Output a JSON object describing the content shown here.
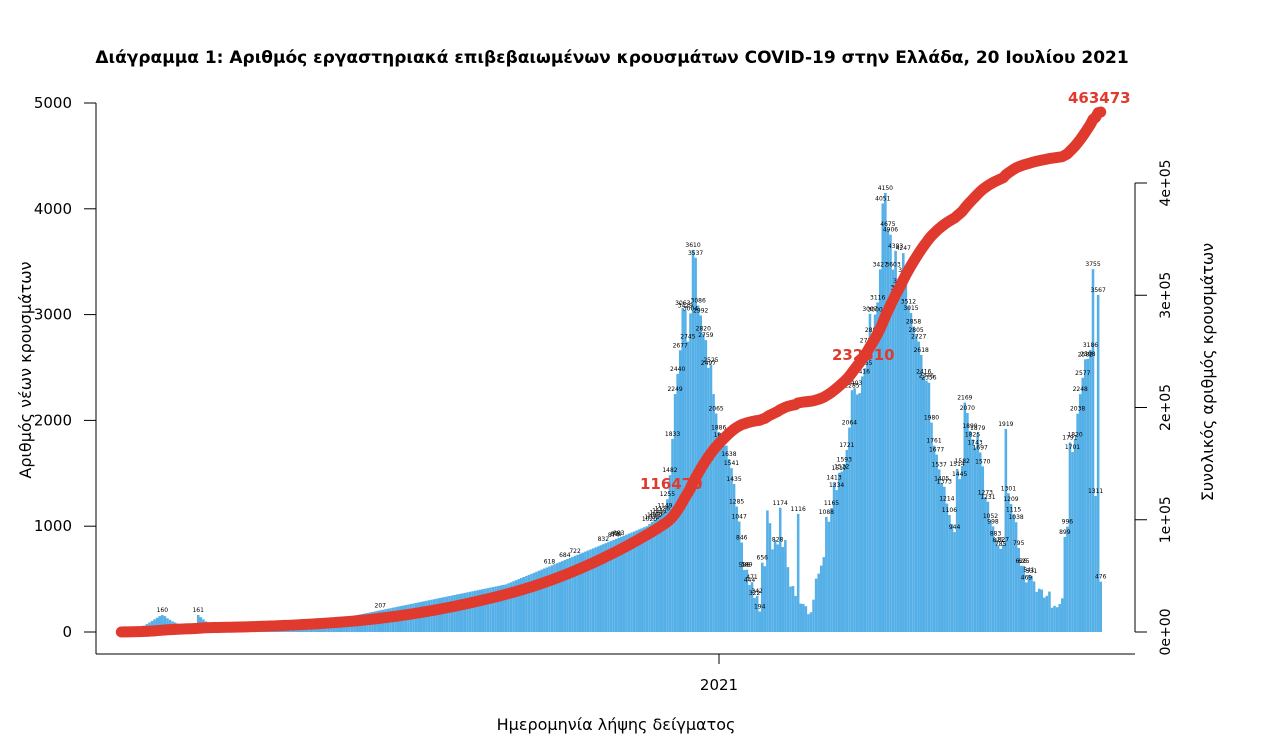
{
  "chart_data": {
    "type": "bar",
    "title": "Διάγραμμα 1: Αριθμός εργαστηριακά επιβεβαιωμένων κρουσμάτων COVID-19 στην Ελλάδα, 20 Ιουλίου 2021",
    "xlabel": "Ημερομηνία λήψης δείγματος",
    "ylabel": "Αριθμός νέων κρουσμάτων",
    "y2label": "Συνολικός αριθμός κρουσμάτων",
    "ylim": [
      0,
      5000
    ],
    "y2lim": [
      0,
      463473
    ],
    "y_ticks": [
      "0",
      "1000",
      "2000",
      "3000",
      "4000",
      "5000"
    ],
    "y2_ticks": [
      "0e+00",
      "1e+05",
      "2e+05",
      "3e+05",
      "4e+05"
    ],
    "x_ticks": [
      "2021"
    ],
    "grid": false,
    "bar_color": "#56b0e8",
    "cumulative_color": "#e03a2e",
    "series": [
      {
        "name": "new_cases",
        "values": [
          20,
          30,
          25,
          35,
          40,
          45,
          49,
          30,
          50,
          60,
          75,
          90,
          105,
          120,
          135,
          150,
          160,
          150,
          130,
          115,
          100,
          90,
          80,
          70,
          61,
          72,
          70,
          65,
          60,
          55,
          161,
          140,
          120,
          100,
          60,
          45,
          40,
          38,
          35,
          32,
          30,
          28,
          30,
          35,
          38,
          40,
          42,
          45,
          48,
          50,
          55,
          58,
          60,
          62,
          65,
          60,
          58,
          55,
          60,
          62,
          65,
          68,
          70,
          72,
          75,
          78,
          80,
          82,
          85,
          88,
          90,
          92,
          95,
          98,
          100,
          102,
          105,
          108,
          110,
          112,
          115,
          118,
          120,
          122,
          125,
          128,
          130,
          135,
          140,
          145,
          150,
          155,
          160,
          165,
          170,
          175,
          180,
          185,
          190,
          195,
          200,
          205,
          210,
          215,
          220,
          225,
          230,
          235,
          240,
          245,
          250,
          255,
          260,
          265,
          270,
          275,
          280,
          285,
          290,
          295,
          300,
          305,
          310,
          315,
          320,
          325,
          330,
          335,
          340,
          345,
          350,
          355,
          360,
          365,
          370,
          375,
          380,
          385,
          390,
          395,
          400,
          405,
          410,
          415,
          420,
          425,
          430,
          435,
          440,
          445,
          450,
          460,
          470,
          480,
          490,
          500,
          510,
          520,
          530,
          540,
          550,
          560,
          570,
          580,
          590,
          600,
          610,
          620,
          630,
          640,
          650,
          660,
          670,
          680,
          690,
          700,
          710,
          720,
          730,
          740,
          750,
          760,
          770,
          780,
          790,
          800,
          810,
          820,
          830,
          840,
          850,
          860,
          870,
          880,
          890,
          900,
          910,
          920,
          930,
          940,
          950,
          960,
          970,
          980,
          990,
          1000,
          1020,
          1040,
          1060,
          1080,
          1100,
          1120,
          1149,
          1255,
          1482,
          1825,
          2249,
          2440,
          2663,
          3063,
          3040,
          2745,
          3011,
          3610,
          3537,
          3086,
          2992,
          2820,
          2759,
          2497,
          2525,
          2249,
          2065,
          1886,
          1817,
          1759,
          1762,
          1635,
          1549,
          1399,
          1186,
          1044,
          846,
          586,
          589,
          444,
          471,
          322,
          342,
          194,
          656,
          622,
          1149,
          1029,
          781,
          867,
          828,
          1174,
          804,
          869,
          613,
          430,
          434,
          341,
          1116,
          268,
          265,
          244,
          169,
          187,
          306,
          505,
          552,
          628,
          708,
          1088,
          1042,
          1172,
          1413,
          1341,
          1505,
          1517,
          1582,
          1721,
          1932,
          2285,
          2304,
          2245,
          2258,
          2416,
          2493,
          2710,
          3007,
          2809,
          3000,
          3116,
          3427,
          4051,
          4150,
          3807,
          3755,
          3425,
          3603,
          3209,
          3272,
          3581,
          3376,
          3076,
          3015,
          2887,
          2805,
          2745,
          2618,
          2416,
          2376,
          2356,
          1980,
          1761,
          1677,
          1537,
          1405,
          1373,
          1214,
          1106,
          1020,
          944,
          1541,
          1445,
          1570,
          2169,
          2070,
          1899,
          1820,
          1743,
          1879,
          1697,
          1566,
          1273,
          1231,
          1047,
          998,
          883,
          821,
          785,
          827,
          1919,
          1311,
          1209,
          1111,
          1038,
          795,
          626,
          625,
          469,
          541,
          531,
          478,
          380,
          409,
          401,
          325,
          342,
          382,
          229,
          247,
          234,
          264,
          318,
          899,
          996,
          1791,
          1701,
          1820,
          2064,
          2248,
          2403,
          2577,
          2582,
          2666,
          3429,
          1285,
          3186,
          476
        ]
      },
      {
        "name": "cumulative",
        "labels": [
          "116470",
          "232510",
          "463473"
        ],
        "values": [
          116470,
          232510,
          463473
        ]
      }
    ],
    "bar_labels": [
      "160",
      "161",
      "3610",
      "3537",
      "3063",
      "3086",
      "2992",
      "2820",
      "2759",
      "2440",
      "2525",
      "2497",
      "2455",
      "2249",
      "2065",
      "1886",
      "1833",
      "1825",
      "1593",
      "1522",
      "1482",
      "1255",
      "1149",
      "1069",
      "1039",
      "1174",
      "1116",
      "1088",
      "883",
      "846",
      "656",
      "586",
      "589",
      "444",
      "471",
      "322",
      "342",
      "194",
      "207",
      "1413",
      "1517",
      "1582",
      "1721",
      "2285",
      "2416",
      "3007",
      "3116",
      "3427",
      "4051",
      "4150",
      "4675",
      "4906",
      "4383",
      "4247",
      "3755",
      "3603",
      "3425",
      "3209",
      "3272",
      "3000",
      "2858",
      "2745",
      "2710",
      "1980",
      "1761",
      "1677",
      "1537",
      "1638",
      "1514",
      "1373",
      "1301",
      "1165",
      "1126",
      "1086",
      "1115",
      "1052",
      "944",
      "874",
      "832",
      "879",
      "3567",
      "3512",
      "3015",
      "2887",
      "2805",
      "2727",
      "2618",
      "2416",
      "2376",
      "2356",
      "2169",
      "2070",
      "2038",
      "1899",
      "1879",
      "1820",
      "1743",
      "1697",
      "1570",
      "1541",
      "1445",
      "1405",
      "1334",
      "1273",
      "1231",
      "1214",
      "1106",
      "1047",
      "1020",
      "998",
      "883",
      "828",
      "821",
      "785",
      "3004",
      "2598",
      "1919",
      "1311",
      "1209",
      "1111",
      "1038",
      "996",
      "899",
      "827",
      "795",
      "722",
      "684",
      "626",
      "625",
      "618",
      "541",
      "531",
      "469",
      "3429",
      "3186",
      "2677",
      "2582",
      "2577",
      "2403",
      "2248",
      "2064",
      "1820",
      "1791",
      "1701",
      "1435",
      "1285",
      "476"
    ],
    "cumulative_labels": [
      "116470",
      "232510",
      "463473"
    ]
  }
}
